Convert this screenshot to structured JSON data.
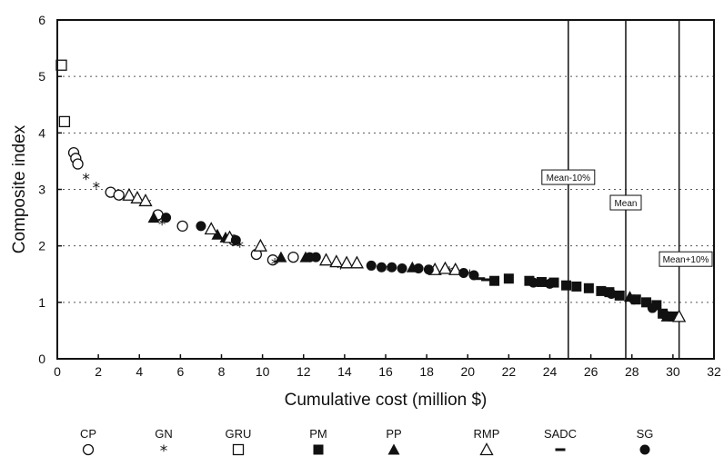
{
  "chart_data": {
    "type": "scatter",
    "title": "",
    "xlabel": "Cumulative cost (million $)",
    "ylabel": "Composite index",
    "xlim": [
      0,
      32
    ],
    "ylim": [
      0,
      6
    ],
    "x_ticks": [
      "0",
      "2",
      "4",
      "6",
      "8",
      "10",
      "12",
      "14",
      "16",
      "18",
      "20",
      "22",
      "24",
      "26",
      "28",
      "30",
      "32"
    ],
    "y_ticks": [
      "0",
      "1",
      "2",
      "3",
      "4",
      "5",
      "6"
    ],
    "grid": "horizontal dotted",
    "legend_position": "bottom",
    "vertical_lines": [
      {
        "label": "Mean-10%",
        "x": 24.9,
        "label_y": 3.2
      },
      {
        "label": "Mean",
        "x": 27.7,
        "label_y": 2.75
      },
      {
        "label": "Mean+10%",
        "x": 30.3,
        "label_y": 1.75
      }
    ],
    "series": [
      {
        "name": "CP",
        "marker": "circle-open",
        "points": [
          [
            0.8,
            3.65
          ],
          [
            0.9,
            3.55
          ],
          [
            1.0,
            3.45
          ],
          [
            2.6,
            2.95
          ],
          [
            3.0,
            2.9
          ],
          [
            4.9,
            2.55
          ],
          [
            6.1,
            2.35
          ],
          [
            8.6,
            2.1
          ],
          [
            9.7,
            1.85
          ],
          [
            10.5,
            1.75
          ],
          [
            11.5,
            1.8
          ]
        ]
      },
      {
        "name": "GN",
        "marker": "star",
        "points": [
          [
            1.4,
            3.2
          ],
          [
            1.9,
            3.05
          ],
          [
            4.4,
            2.75
          ],
          [
            5.1,
            2.4
          ],
          [
            8.9,
            2.0
          ],
          [
            10.6,
            1.7
          ],
          [
            13.8,
            1.62
          ],
          [
            16.2,
            1.58
          ],
          [
            19.1,
            1.55
          ],
          [
            20.1,
            1.5
          ]
        ]
      },
      {
        "name": "GRU",
        "marker": "square-open",
        "points": [
          [
            0.2,
            5.2
          ],
          [
            0.35,
            4.2
          ]
        ]
      },
      {
        "name": "PM",
        "marker": "square-filled",
        "points": [
          [
            21.3,
            1.38
          ],
          [
            22.0,
            1.42
          ],
          [
            23.0,
            1.38
          ],
          [
            23.6,
            1.36
          ],
          [
            24.2,
            1.35
          ],
          [
            24.8,
            1.3
          ],
          [
            25.3,
            1.28
          ],
          [
            25.9,
            1.25
          ],
          [
            26.5,
            1.2
          ],
          [
            26.9,
            1.18
          ],
          [
            27.4,
            1.12
          ],
          [
            28.2,
            1.05
          ],
          [
            28.7,
            1.0
          ],
          [
            29.2,
            0.95
          ],
          [
            29.5,
            0.8
          ],
          [
            30.0,
            0.75
          ]
        ]
      },
      {
        "name": "PP",
        "marker": "triangle-filled",
        "points": [
          [
            4.7,
            2.5
          ],
          [
            7.8,
            2.2
          ],
          [
            8.2,
            2.15
          ],
          [
            10.9,
            1.8
          ],
          [
            12.1,
            1.8
          ],
          [
            17.3,
            1.62
          ],
          [
            27.9,
            1.1
          ],
          [
            29.7,
            0.75
          ]
        ]
      },
      {
        "name": "RMP",
        "marker": "triangle-open",
        "points": [
          [
            3.5,
            2.9
          ],
          [
            3.9,
            2.85
          ],
          [
            4.3,
            2.8
          ],
          [
            7.5,
            2.3
          ],
          [
            8.4,
            2.15
          ],
          [
            9.9,
            2.0
          ],
          [
            13.1,
            1.75
          ],
          [
            13.6,
            1.72
          ],
          [
            14.1,
            1.7
          ],
          [
            14.6,
            1.7
          ],
          [
            18.4,
            1.58
          ],
          [
            18.9,
            1.6
          ],
          [
            19.4,
            1.58
          ],
          [
            30.3,
            0.75
          ]
        ]
      },
      {
        "name": "SADC",
        "marker": "dash",
        "points": [
          [
            20.6,
            1.42
          ],
          [
            20.9,
            1.4
          ],
          [
            21.2,
            1.4
          ]
        ]
      },
      {
        "name": "SG",
        "marker": "circle-filled",
        "points": [
          [
            5.3,
            2.5
          ],
          [
            7.0,
            2.35
          ],
          [
            8.7,
            2.1
          ],
          [
            12.3,
            1.8
          ],
          [
            12.6,
            1.8
          ],
          [
            15.3,
            1.65
          ],
          [
            15.8,
            1.62
          ],
          [
            16.3,
            1.62
          ],
          [
            16.8,
            1.6
          ],
          [
            17.6,
            1.6
          ],
          [
            18.1,
            1.58
          ],
          [
            19.8,
            1.52
          ],
          [
            20.3,
            1.48
          ],
          [
            23.2,
            1.35
          ],
          [
            24.0,
            1.33
          ],
          [
            27.0,
            1.15
          ],
          [
            28.1,
            1.05
          ],
          [
            29.0,
            0.9
          ],
          [
            29.6,
            0.78
          ],
          [
            29.9,
            0.75
          ]
        ]
      }
    ]
  }
}
